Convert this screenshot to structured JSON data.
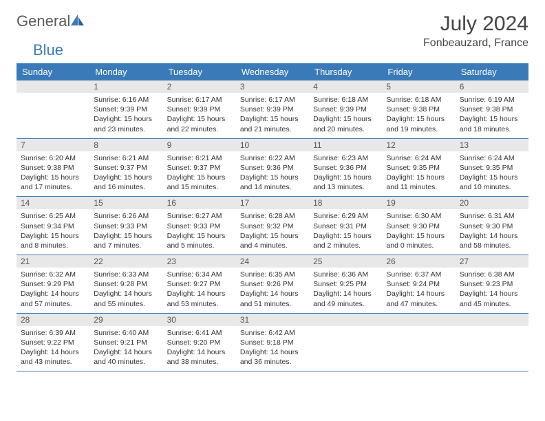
{
  "logo": {
    "text_gray": "General",
    "text_blue": "Blue"
  },
  "title": "July 2024",
  "location": "Fonbeauzard, France",
  "colors": {
    "header_bg": "#3a7ab8",
    "header_text": "#ffffff",
    "daynum_bg": "#e8e8e8",
    "row_border": "#3a7ab8",
    "body_text": "#333333",
    "logo_gray": "#5a5a5a",
    "logo_blue": "#3a7ab8"
  },
  "weekdays": [
    "Sunday",
    "Monday",
    "Tuesday",
    "Wednesday",
    "Thursday",
    "Friday",
    "Saturday"
  ],
  "weeks": [
    [
      {
        "n": "",
        "sr": "",
        "ss": "",
        "dl": ""
      },
      {
        "n": "1",
        "sr": "Sunrise: 6:16 AM",
        "ss": "Sunset: 9:39 PM",
        "dl": "Daylight: 15 hours and 23 minutes."
      },
      {
        "n": "2",
        "sr": "Sunrise: 6:17 AM",
        "ss": "Sunset: 9:39 PM",
        "dl": "Daylight: 15 hours and 22 minutes."
      },
      {
        "n": "3",
        "sr": "Sunrise: 6:17 AM",
        "ss": "Sunset: 9:39 PM",
        "dl": "Daylight: 15 hours and 21 minutes."
      },
      {
        "n": "4",
        "sr": "Sunrise: 6:18 AM",
        "ss": "Sunset: 9:39 PM",
        "dl": "Daylight: 15 hours and 20 minutes."
      },
      {
        "n": "5",
        "sr": "Sunrise: 6:18 AM",
        "ss": "Sunset: 9:38 PM",
        "dl": "Daylight: 15 hours and 19 minutes."
      },
      {
        "n": "6",
        "sr": "Sunrise: 6:19 AM",
        "ss": "Sunset: 9:38 PM",
        "dl": "Daylight: 15 hours and 18 minutes."
      }
    ],
    [
      {
        "n": "7",
        "sr": "Sunrise: 6:20 AM",
        "ss": "Sunset: 9:38 PM",
        "dl": "Daylight: 15 hours and 17 minutes."
      },
      {
        "n": "8",
        "sr": "Sunrise: 6:21 AM",
        "ss": "Sunset: 9:37 PM",
        "dl": "Daylight: 15 hours and 16 minutes."
      },
      {
        "n": "9",
        "sr": "Sunrise: 6:21 AM",
        "ss": "Sunset: 9:37 PM",
        "dl": "Daylight: 15 hours and 15 minutes."
      },
      {
        "n": "10",
        "sr": "Sunrise: 6:22 AM",
        "ss": "Sunset: 9:36 PM",
        "dl": "Daylight: 15 hours and 14 minutes."
      },
      {
        "n": "11",
        "sr": "Sunrise: 6:23 AM",
        "ss": "Sunset: 9:36 PM",
        "dl": "Daylight: 15 hours and 13 minutes."
      },
      {
        "n": "12",
        "sr": "Sunrise: 6:24 AM",
        "ss": "Sunset: 9:35 PM",
        "dl": "Daylight: 15 hours and 11 minutes."
      },
      {
        "n": "13",
        "sr": "Sunrise: 6:24 AM",
        "ss": "Sunset: 9:35 PM",
        "dl": "Daylight: 15 hours and 10 minutes."
      }
    ],
    [
      {
        "n": "14",
        "sr": "Sunrise: 6:25 AM",
        "ss": "Sunset: 9:34 PM",
        "dl": "Daylight: 15 hours and 8 minutes."
      },
      {
        "n": "15",
        "sr": "Sunrise: 6:26 AM",
        "ss": "Sunset: 9:33 PM",
        "dl": "Daylight: 15 hours and 7 minutes."
      },
      {
        "n": "16",
        "sr": "Sunrise: 6:27 AM",
        "ss": "Sunset: 9:33 PM",
        "dl": "Daylight: 15 hours and 5 minutes."
      },
      {
        "n": "17",
        "sr": "Sunrise: 6:28 AM",
        "ss": "Sunset: 9:32 PM",
        "dl": "Daylight: 15 hours and 4 minutes."
      },
      {
        "n": "18",
        "sr": "Sunrise: 6:29 AM",
        "ss": "Sunset: 9:31 PM",
        "dl": "Daylight: 15 hours and 2 minutes."
      },
      {
        "n": "19",
        "sr": "Sunrise: 6:30 AM",
        "ss": "Sunset: 9:30 PM",
        "dl": "Daylight: 15 hours and 0 minutes."
      },
      {
        "n": "20",
        "sr": "Sunrise: 6:31 AM",
        "ss": "Sunset: 9:30 PM",
        "dl": "Daylight: 14 hours and 58 minutes."
      }
    ],
    [
      {
        "n": "21",
        "sr": "Sunrise: 6:32 AM",
        "ss": "Sunset: 9:29 PM",
        "dl": "Daylight: 14 hours and 57 minutes."
      },
      {
        "n": "22",
        "sr": "Sunrise: 6:33 AM",
        "ss": "Sunset: 9:28 PM",
        "dl": "Daylight: 14 hours and 55 minutes."
      },
      {
        "n": "23",
        "sr": "Sunrise: 6:34 AM",
        "ss": "Sunset: 9:27 PM",
        "dl": "Daylight: 14 hours and 53 minutes."
      },
      {
        "n": "24",
        "sr": "Sunrise: 6:35 AM",
        "ss": "Sunset: 9:26 PM",
        "dl": "Daylight: 14 hours and 51 minutes."
      },
      {
        "n": "25",
        "sr": "Sunrise: 6:36 AM",
        "ss": "Sunset: 9:25 PM",
        "dl": "Daylight: 14 hours and 49 minutes."
      },
      {
        "n": "26",
        "sr": "Sunrise: 6:37 AM",
        "ss": "Sunset: 9:24 PM",
        "dl": "Daylight: 14 hours and 47 minutes."
      },
      {
        "n": "27",
        "sr": "Sunrise: 6:38 AM",
        "ss": "Sunset: 9:23 PM",
        "dl": "Daylight: 14 hours and 45 minutes."
      }
    ],
    [
      {
        "n": "28",
        "sr": "Sunrise: 6:39 AM",
        "ss": "Sunset: 9:22 PM",
        "dl": "Daylight: 14 hours and 43 minutes."
      },
      {
        "n": "29",
        "sr": "Sunrise: 6:40 AM",
        "ss": "Sunset: 9:21 PM",
        "dl": "Daylight: 14 hours and 40 minutes."
      },
      {
        "n": "30",
        "sr": "Sunrise: 6:41 AM",
        "ss": "Sunset: 9:20 PM",
        "dl": "Daylight: 14 hours and 38 minutes."
      },
      {
        "n": "31",
        "sr": "Sunrise: 6:42 AM",
        "ss": "Sunset: 9:18 PM",
        "dl": "Daylight: 14 hours and 36 minutes."
      },
      {
        "n": "",
        "sr": "",
        "ss": "",
        "dl": ""
      },
      {
        "n": "",
        "sr": "",
        "ss": "",
        "dl": ""
      },
      {
        "n": "",
        "sr": "",
        "ss": "",
        "dl": ""
      }
    ]
  ]
}
